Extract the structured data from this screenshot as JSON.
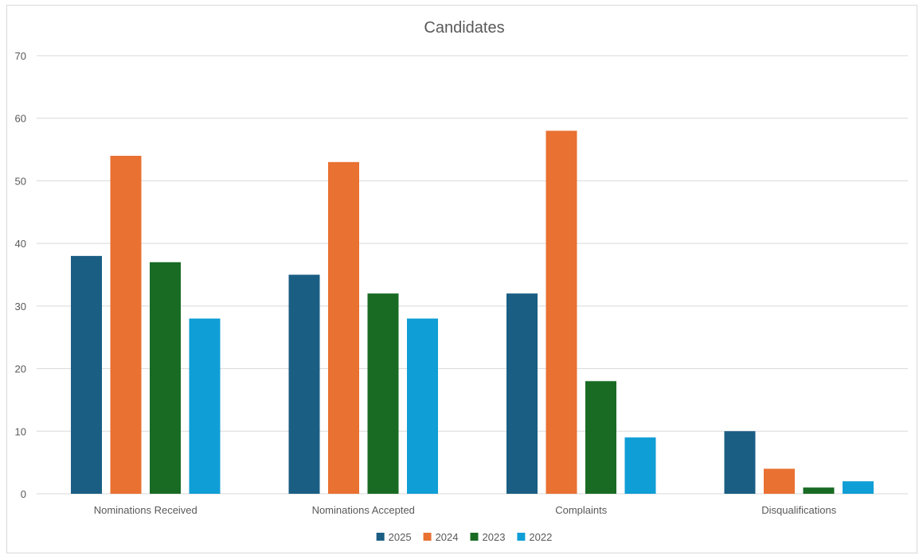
{
  "chart_data": {
    "type": "bar",
    "title": "Candidates",
    "xlabel": "",
    "ylabel": "",
    "categories": [
      "Nominations Received",
      "Nominations Accepted",
      "Complaints",
      "Disqualifications"
    ],
    "series": [
      {
        "name": "2025",
        "color": "#1b5e84",
        "values": [
          38,
          35,
          32,
          10
        ]
      },
      {
        "name": "2024",
        "color": "#e97132",
        "values": [
          54,
          53,
          58,
          4
        ]
      },
      {
        "name": "2023",
        "color": "#196b24",
        "values": [
          37,
          32,
          18,
          1
        ]
      },
      {
        "name": "2022",
        "color": "#0f9ed5",
        "values": [
          28,
          28,
          9,
          2
        ]
      }
    ],
    "ylim": [
      0,
      70
    ],
    "yticks": [
      0,
      10,
      20,
      30,
      40,
      50,
      60,
      70
    ],
    "grid": true,
    "legend_position": "bottom"
  }
}
